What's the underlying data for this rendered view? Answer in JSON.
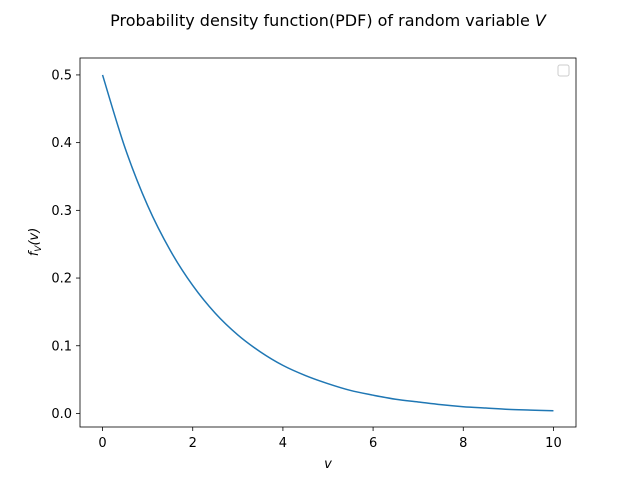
{
  "chart_data": {
    "type": "line",
    "title_prefix": "Probability density function(PDF) of random variable ",
    "title_var": "V",
    "xlabel": "v",
    "ylabel_f": "f",
    "ylabel_sub": "V",
    "ylabel_arg": "(v)",
    "xlim": [
      -0.5,
      10.5
    ],
    "ylim": [
      -0.02,
      0.525
    ],
    "xticks": [
      0,
      2,
      4,
      6,
      8,
      10
    ],
    "xtick_labels": [
      "0",
      "2",
      "4",
      "6",
      "8",
      "10"
    ],
    "yticks": [
      0.0,
      0.1,
      0.2,
      0.3,
      0.4,
      0.5
    ],
    "ytick_labels": [
      "0.0",
      "0.1",
      "0.2",
      "0.3",
      "0.4",
      "0.5"
    ],
    "grid": false,
    "legend": "top-right (empty)",
    "series": [
      {
        "color": "#1f77b4",
        "x": [
          0,
          0.5,
          1,
          1.5,
          2,
          2.5,
          3,
          3.5,
          4,
          4.5,
          5,
          5.5,
          6,
          6.5,
          7,
          7.5,
          8,
          8.5,
          9,
          9.5,
          10
        ],
        "y": [
          0.5,
          0.392,
          0.307,
          0.241,
          0.189,
          0.148,
          0.116,
          0.091,
          0.071,
          0.056,
          0.044,
          0.034,
          0.027,
          0.021,
          0.017,
          0.013,
          0.01,
          0.008,
          0.006,
          0.005,
          0.004
        ]
      }
    ]
  }
}
